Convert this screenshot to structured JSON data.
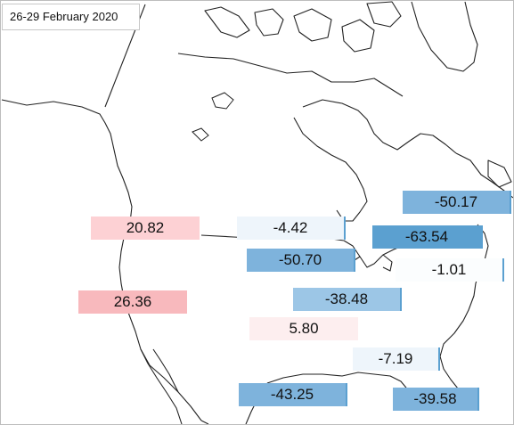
{
  "title": "26-29  February 2020",
  "colors": {
    "positive_strong": "#f8b9bd",
    "positive_mid": "#fdd1d4",
    "positive_faint": "#fdeeef",
    "negative_strong": "#5ba0d0",
    "negative_mid": "#7eb3dc",
    "negative_light": "#9cc6e6",
    "negative_faint": "#eef5fb",
    "negative_faintest": "#fbfdfe",
    "coast": "#222222"
  },
  "readings": [
    {
      "id": "west-coast-north",
      "label": "20.82",
      "value": 20.82,
      "color": "#fdd1d4"
    },
    {
      "id": "west-coast-south",
      "label": "26.36",
      "value": 26.36,
      "color": "#f8b9bd"
    },
    {
      "id": "northern-plains",
      "label": "-4.42",
      "value": -4.42,
      "color": "#eef5fb"
    },
    {
      "id": "great-lakes-west",
      "label": "-50.70",
      "value": -50.7,
      "color": "#7eb3dc"
    },
    {
      "id": "midwest",
      "label": "-38.48",
      "value": -38.48,
      "color": "#9cc6e6"
    },
    {
      "id": "southern-plains",
      "label": "5.80",
      "value": 5.8,
      "color": "#fdeeef"
    },
    {
      "id": "gulf-coast",
      "label": "-43.25",
      "value": -43.25,
      "color": "#7eb3dc"
    },
    {
      "id": "southeast",
      "label": "-7.19",
      "value": -7.19,
      "color": "#eef5fb"
    },
    {
      "id": "florida",
      "label": "-39.58",
      "value": -39.58,
      "color": "#7eb3dc"
    },
    {
      "id": "mid-atlantic",
      "label": "-1.01",
      "value": -1.01,
      "color": "#fbfdfe"
    },
    {
      "id": "great-lakes-east",
      "label": "-63.54",
      "value": -63.54,
      "color": "#5ba0d0"
    },
    {
      "id": "new-england",
      "label": "-50.17",
      "value": -50.17,
      "color": "#7eb3dc"
    }
  ]
}
